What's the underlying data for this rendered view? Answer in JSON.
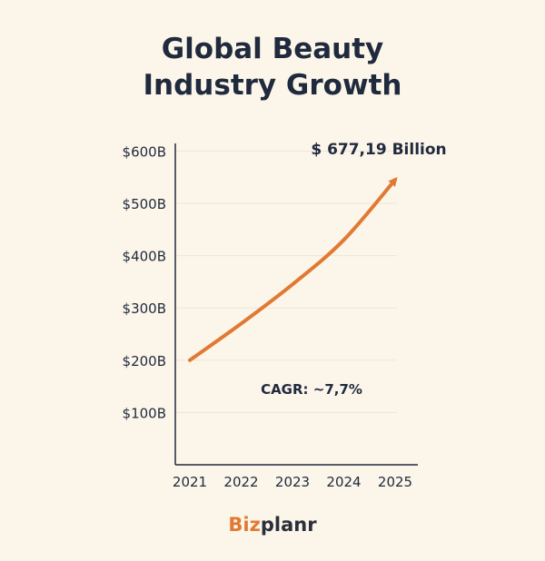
{
  "title": {
    "line1": "Global Beauty",
    "line2": "Industry Growth"
  },
  "brand": {
    "prefix": "Biz",
    "suffix": "planr"
  },
  "colors": {
    "background": "#fcf5ea",
    "text": "#1f2a3d",
    "accent": "#e07a33",
    "grid": "#ede6da",
    "axis": "#1f2a3d"
  },
  "chart_data": {
    "type": "line",
    "title": "Global Beauty Industry Growth",
    "x": [
      "2021",
      "2022",
      "2023",
      "2024",
      "2025"
    ],
    "series": [
      {
        "values": [
          200,
          270,
          345,
          430,
          545
        ]
      }
    ],
    "yticks": [
      "$100B",
      "$200B",
      "$300B",
      "$400B",
      "$500B",
      "$600B"
    ],
    "ytick_values": [
      100,
      200,
      300,
      400,
      500,
      600
    ],
    "ylim": [
      0,
      610
    ],
    "grid": true,
    "arrow_end": true,
    "annotations": [
      {
        "text": "$ 677,19 Billion"
      },
      {
        "text": "CAGR: ~7,7%"
      }
    ]
  }
}
